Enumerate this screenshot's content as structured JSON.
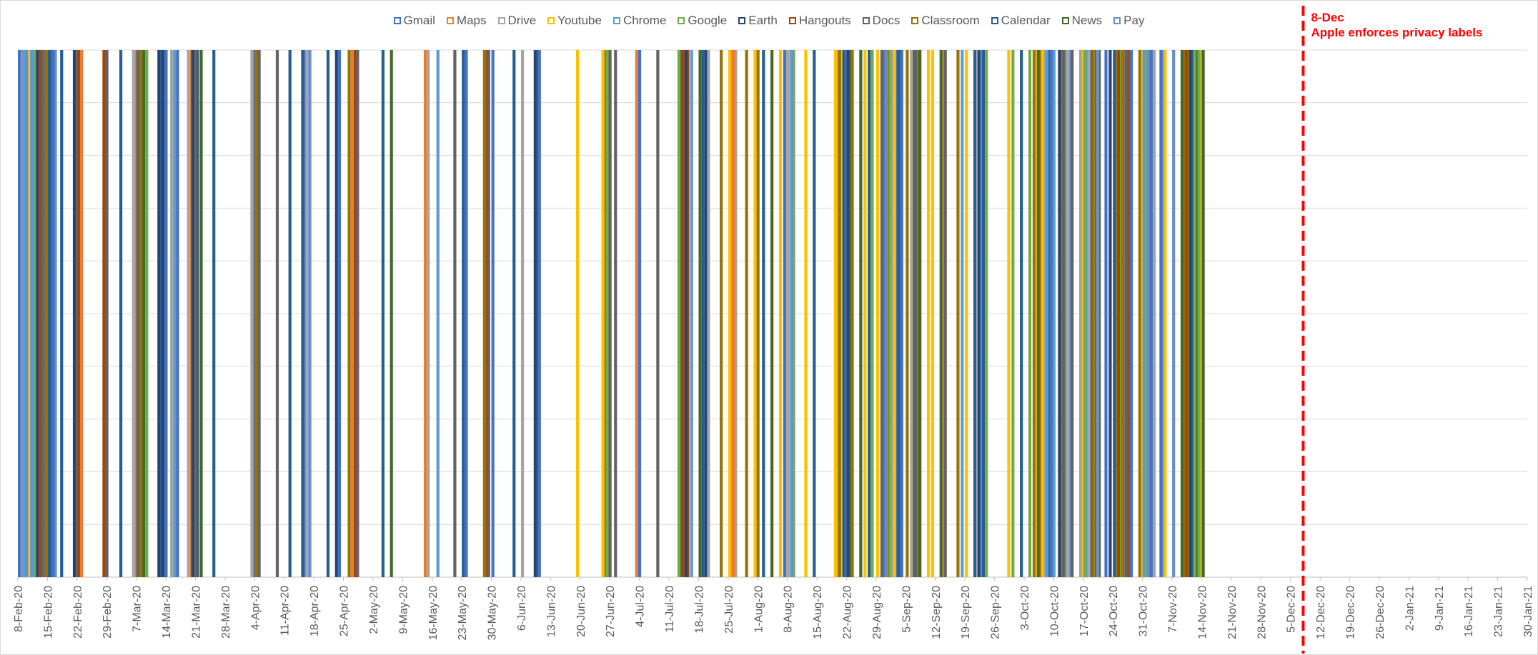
{
  "chart_data": {
    "type": "bar",
    "x_axis": {
      "tick_labels": [
        "8-Feb-20",
        "15-Feb-20",
        "22-Feb-20",
        "29-Feb-20",
        "7-Mar-20",
        "14-Mar-20",
        "21-Mar-20",
        "28-Mar-20",
        "4-Apr-20",
        "11-Apr-20",
        "18-Apr-20",
        "25-Apr-20",
        "2-May-20",
        "9-May-20",
        "16-May-20",
        "23-May-20",
        "30-May-20",
        "6-Jun-20",
        "13-Jun-20",
        "20-Jun-20",
        "27-Jun-20",
        "4-Jul-20",
        "11-Jul-20",
        "18-Jul-20",
        "25-Jul-20",
        "1-Aug-20",
        "8-Aug-20",
        "15-Aug-20",
        "22-Aug-20",
        "29-Aug-20",
        "5-Sep-20",
        "12-Sep-20",
        "19-Sep-20",
        "26-Sep-20",
        "3-Oct-20",
        "10-Oct-20",
        "17-Oct-20",
        "24-Oct-20",
        "31-Oct-20",
        "7-Nov-20",
        "14-Nov-20",
        "21-Nov-20",
        "28-Nov-20",
        "5-Dec-20",
        "12-Dec-20",
        "19-Dec-20",
        "26-Dec-20",
        "2-Jan-21",
        "9-Jan-21",
        "16-Jan-21",
        "23-Jan-21",
        "30-Jan-21"
      ]
    },
    "y_axis": {
      "tick_labels_visible": false,
      "gridlines": 10
    },
    "grid": true,
    "legend_position": "top",
    "series": [
      {
        "name": "Gmail",
        "color": "#4472c4"
      },
      {
        "name": "Maps",
        "color": "#ed7d31"
      },
      {
        "name": "Drive",
        "color": "#a5a5a5"
      },
      {
        "name": "Youtube",
        "color": "#ffc000"
      },
      {
        "name": "Chrome",
        "color": "#5b9bd5"
      },
      {
        "name": "Google",
        "color": "#70ad47"
      },
      {
        "name": "Earth",
        "color": "#264478"
      },
      {
        "name": "Hangouts",
        "color": "#9e480e"
      },
      {
        "name": "Docs",
        "color": "#636363"
      },
      {
        "name": "Classroom",
        "color": "#997300"
      },
      {
        "name": "Calendar",
        "color": "#255e91"
      },
      {
        "name": "News",
        "color": "#43682b"
      },
      {
        "name": "Pay",
        "color": "#698ed0"
      }
    ],
    "update_days": [
      {
        "day": 0,
        "s": [
          0,
          1,
          2,
          3,
          4,
          5,
          6,
          7,
          8,
          9,
          10,
          11,
          12
        ]
      },
      {
        "day": 1,
        "s": [
          4,
          12
        ]
      },
      {
        "day": 8,
        "s": [
          0
        ]
      },
      {
        "day": 10,
        "s": [
          10
        ]
      },
      {
        "day": 13,
        "s": [
          6,
          8,
          9
        ]
      },
      {
        "day": 14,
        "s": [
          7,
          1
        ]
      },
      {
        "day": 20,
        "s": [
          7,
          8
        ]
      },
      {
        "day": 24,
        "s": [
          10
        ]
      },
      {
        "day": 27,
        "s": [
          2,
          1,
          4
        ]
      },
      {
        "day": 28,
        "s": [
          8,
          9,
          11,
          5
        ]
      },
      {
        "day": 33,
        "s": [
          6,
          10
        ]
      },
      {
        "day": 34,
        "s": [
          6,
          0
        ]
      },
      {
        "day": 36,
        "s": [
          2,
          4,
          0
        ]
      },
      {
        "day": 40,
        "s": [
          2,
          1,
          9,
          10
        ]
      },
      {
        "day": 41,
        "s": [
          6,
          8
        ]
      },
      {
        "day": 43,
        "s": [
          11
        ]
      },
      {
        "day": 46,
        "s": [
          10
        ]
      },
      {
        "day": 55,
        "s": [
          2,
          0,
          4
        ]
      },
      {
        "day": 56,
        "s": [
          9,
          8
        ]
      },
      {
        "day": 61,
        "s": [
          8
        ]
      },
      {
        "day": 64,
        "s": [
          10
        ]
      },
      {
        "day": 67,
        "s": [
          10,
          0,
          4
        ]
      },
      {
        "day": 68,
        "s": [
          2,
          12
        ]
      },
      {
        "day": 73,
        "s": [
          10
        ]
      },
      {
        "day": 75,
        "s": [
          6,
          0
        ]
      },
      {
        "day": 78,
        "s": [
          9,
          1,
          7
        ]
      },
      {
        "day": 80,
        "s": [
          8
        ]
      },
      {
        "day": 86,
        "s": [
          10
        ]
      },
      {
        "day": 88,
        "s": [
          11
        ]
      },
      {
        "day": 96,
        "s": [
          1,
          2
        ]
      },
      {
        "day": 99,
        "s": [
          4
        ]
      },
      {
        "day": 103,
        "s": [
          8
        ]
      },
      {
        "day": 105,
        "s": [
          10,
          0
        ]
      },
      {
        "day": 110,
        "s": [
          9,
          7
        ]
      },
      {
        "day": 111,
        "s": [
          8
        ]
      },
      {
        "day": 112,
        "s": [
          0
        ]
      },
      {
        "day": 117,
        "s": [
          10
        ]
      },
      {
        "day": 119,
        "s": [
          2
        ]
      },
      {
        "day": 122,
        "s": [
          6,
          10
        ]
      },
      {
        "day": 123,
        "s": [
          0
        ]
      },
      {
        "day": 132,
        "s": [
          3
        ]
      },
      {
        "day": 138,
        "s": [
          3,
          9
        ]
      },
      {
        "day": 139,
        "s": [
          5,
          8
        ]
      },
      {
        "day": 141,
        "s": [
          8
        ]
      },
      {
        "day": 146,
        "s": [
          1,
          0
        ]
      },
      {
        "day": 151,
        "s": [
          8
        ]
      },
      {
        "day": 156,
        "s": [
          5,
          11,
          9,
          7
        ]
      },
      {
        "day": 157,
        "s": [
          7,
          6
        ]
      },
      {
        "day": 159,
        "s": [
          4
        ]
      },
      {
        "day": 161,
        "s": [
          11,
          10,
          6
        ]
      },
      {
        "day": 163,
        "s": [
          2
        ]
      },
      {
        "day": 166,
        "s": [
          9
        ]
      },
      {
        "day": 168,
        "s": [
          3,
          1,
          2
        ]
      },
      {
        "day": 169,
        "s": [
          1
        ]
      },
      {
        "day": 172,
        "s": [
          9
        ]
      },
      {
        "day": 174,
        "s": [
          3,
          9
        ]
      },
      {
        "day": 176,
        "s": [
          10
        ]
      },
      {
        "day": 178,
        "s": [
          11
        ]
      },
      {
        "day": 180,
        "s": [
          3
        ]
      },
      {
        "day": 181,
        "s": [
          0,
          2,
          4,
          5
        ]
      },
      {
        "day": 182,
        "s": [
          2,
          4
        ]
      },
      {
        "day": 186,
        "s": [
          3
        ]
      },
      {
        "day": 188,
        "s": [
          10
        ]
      },
      {
        "day": 193,
        "s": [
          3,
          2,
          5
        ]
      },
      {
        "day": 194,
        "s": [
          9,
          3
        ]
      },
      {
        "day": 195,
        "s": [
          10,
          0,
          5
        ]
      },
      {
        "day": 196,
        "s": [
          6,
          11
        ]
      },
      {
        "day": 197,
        "s": [
          9
        ]
      },
      {
        "day": 199,
        "s": [
          11
        ]
      },
      {
        "day": 200,
        "s": [
          3
        ]
      },
      {
        "day": 201,
        "s": [
          10,
          5
        ]
      },
      {
        "day": 203,
        "s": [
          3
        ]
      },
      {
        "day": 204,
        "s": [
          8,
          0
        ]
      },
      {
        "day": 205,
        "s": [
          12,
          9
        ]
      },
      {
        "day": 206,
        "s": [
          5,
          2,
          3
        ]
      },
      {
        "day": 207,
        "s": [
          3,
          0,
          11
        ]
      },
      {
        "day": 208,
        "s": [
          10,
          0
        ]
      },
      {
        "day": 210,
        "s": [
          9
        ]
      },
      {
        "day": 211,
        "s": [
          2,
          11
        ]
      },
      {
        "day": 212,
        "s": [
          8,
          9
        ]
      },
      {
        "day": 213,
        "s": [
          11
        ]
      },
      {
        "day": 215,
        "s": [
          3
        ]
      },
      {
        "day": 216,
        "s": [
          3
        ]
      },
      {
        "day": 218,
        "s": [
          11,
          1
        ]
      },
      {
        "day": 219,
        "s": [
          8
        ]
      },
      {
        "day": 222,
        "s": [
          9
        ]
      },
      {
        "day": 223,
        "s": [
          4
        ]
      },
      {
        "day": 224,
        "s": [
          3
        ]
      },
      {
        "day": 226,
        "s": [
          10,
          2
        ]
      },
      {
        "day": 227,
        "s": [
          6,
          4
        ]
      },
      {
        "day": 228,
        "s": [
          10,
          5
        ]
      },
      {
        "day": 234,
        "s": [
          3
        ]
      },
      {
        "day": 235,
        "s": [
          5
        ]
      },
      {
        "day": 237,
        "s": [
          10
        ]
      },
      {
        "day": 239,
        "s": [
          5
        ]
      },
      {
        "day": 240,
        "s": [
          9,
          3
        ]
      },
      {
        "day": 241,
        "s": [
          11,
          9,
          10
        ]
      },
      {
        "day": 242,
        "s": [
          3,
          2
        ]
      },
      {
        "day": 243,
        "s": [
          4,
          10,
          6
        ]
      },
      {
        "day": 244,
        "s": [
          0,
          4
        ]
      },
      {
        "day": 246,
        "s": [
          6,
          9
        ]
      },
      {
        "day": 247,
        "s": [
          8,
          4,
          0
        ]
      },
      {
        "day": 248,
        "s": [
          2,
          4
        ]
      },
      {
        "day": 249,
        "s": [
          8
        ]
      },
      {
        "day": 251,
        "s": [
          2,
          3
        ]
      },
      {
        "day": 252,
        "s": [
          5,
          4,
          1
        ]
      },
      {
        "day": 253,
        "s": [
          2,
          10
        ]
      },
      {
        "day": 254,
        "s": [
          9,
          7,
          8
        ]
      },
      {
        "day": 255,
        "s": [
          4
        ]
      },
      {
        "day": 257,
        "s": [
          0
        ]
      },
      {
        "day": 258,
        "s": [
          6
        ]
      },
      {
        "day": 259,
        "s": [
          10,
          9,
          5
        ]
      },
      {
        "day": 260,
        "s": [
          7
        ]
      },
      {
        "day": 261,
        "s": [
          9,
          8,
          7
        ]
      },
      {
        "day": 263,
        "s": [
          0
        ]
      },
      {
        "day": 265,
        "s": [
          9,
          3
        ]
      },
      {
        "day": 266,
        "s": [
          4,
          5,
          0
        ]
      },
      {
        "day": 267,
        "s": [
          12,
          0,
          2
        ]
      },
      {
        "day": 270,
        "s": [
          0,
          4
        ]
      },
      {
        "day": 271,
        "s": [
          3
        ]
      },
      {
        "day": 273,
        "s": [
          12
        ]
      },
      {
        "day": 275,
        "s": [
          11,
          9
        ]
      },
      {
        "day": 276,
        "s": [
          7,
          9
        ]
      },
      {
        "day": 277,
        "s": [
          6,
          10,
          8
        ]
      },
      {
        "day": 278,
        "s": [
          5,
          11,
          3
        ]
      },
      {
        "day": 279,
        "s": [
          5
        ]
      },
      {
        "day": 280,
        "s": [
          11
        ]
      }
    ]
  },
  "annotation": {
    "date": "8-Dec",
    "text": "Apple enforces privacy labels",
    "color": "#ff0000"
  }
}
